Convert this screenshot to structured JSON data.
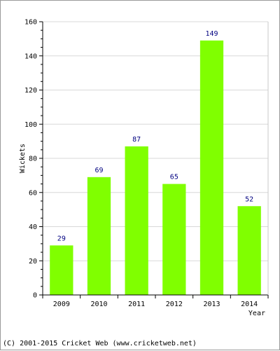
{
  "chart_data": {
    "type": "bar",
    "categories": [
      "2009",
      "2010",
      "2011",
      "2012",
      "2013",
      "2014"
    ],
    "values": [
      29,
      69,
      87,
      65,
      149,
      52
    ],
    "title": "",
    "xlabel": "Year",
    "ylabel": "Wickets",
    "ylim": [
      0,
      160
    ],
    "yticks": [
      0,
      20,
      40,
      60,
      80,
      100,
      120,
      140,
      160
    ],
    "grid": true,
    "legend": "none",
    "bar_color": "#80ff00",
    "label_color": "#000080"
  },
  "footer": {
    "copyright": "(C) 2001-2015 Cricket Web (www.cricketweb.net)"
  }
}
